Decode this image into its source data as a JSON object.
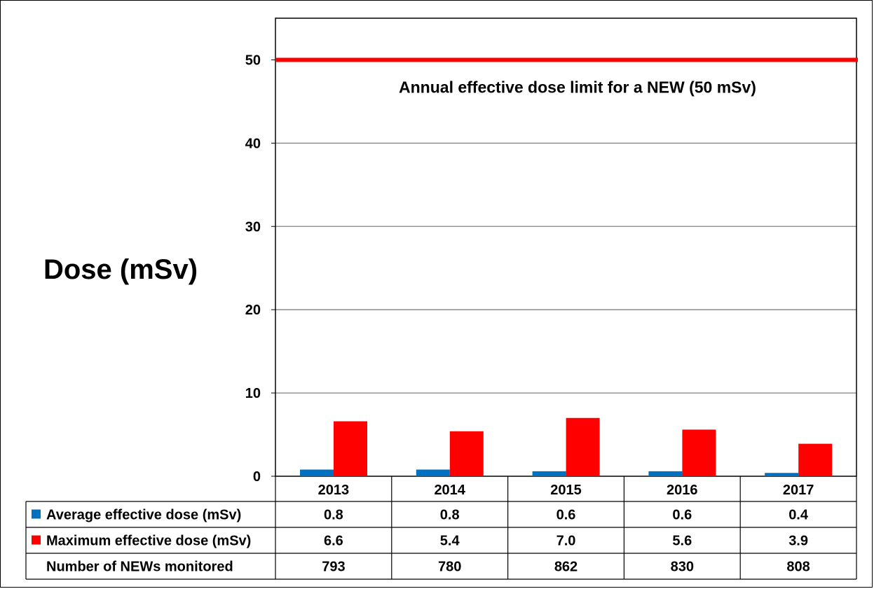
{
  "chart_data": {
    "type": "bar",
    "ylabel": "Dose (mSv)",
    "ylim": [
      0,
      55
    ],
    "yticks": [
      0,
      10,
      20,
      30,
      40,
      50
    ],
    "categories": [
      "2013",
      "2014",
      "2015",
      "2016",
      "2017"
    ],
    "series": [
      {
        "name": "Average effective dose (mSv)",
        "color": "#0070C0",
        "values": [
          0.8,
          0.8,
          0.6,
          0.6,
          0.4
        ],
        "labels": [
          "0.8",
          "0.8",
          "0.6",
          "0.6",
          "0.4"
        ]
      },
      {
        "name": "Maximum effective dose (mSv)",
        "color": "#FF0000",
        "values": [
          6.6,
          5.4,
          7.0,
          5.6,
          3.9
        ],
        "labels": [
          "6.6",
          "5.4",
          "7.0",
          "5.6",
          "3.9"
        ]
      }
    ],
    "table_rows": [
      {
        "label": "Number of NEWs monitored",
        "values": [
          "793",
          "780",
          "862",
          "830",
          "808"
        ]
      }
    ],
    "reference_line": {
      "value": 50,
      "color": "#FF0000",
      "label": "Annual effective dose limit for a NEW (50 mSv)"
    },
    "grid": true
  }
}
